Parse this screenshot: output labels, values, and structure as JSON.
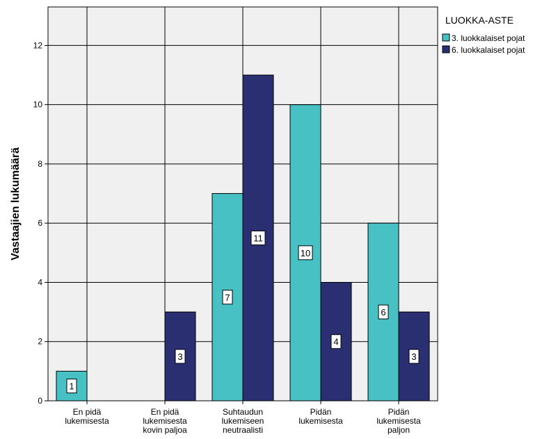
{
  "chart_data": {
    "type": "bar",
    "categories": [
      [
        "En pidä",
        "lukemisesta"
      ],
      [
        "En pidä",
        "lukemisesta",
        "kovin paljoa"
      ],
      [
        "Suhtaudun",
        "lukemiseen",
        "neutraalisti"
      ],
      [
        "Pidän",
        "lukemisesta"
      ],
      [
        "Pidän",
        "lukemisesta",
        "paljon"
      ]
    ],
    "series": [
      {
        "name": "3. luokkalaiset pojat",
        "color": "#48c1c4",
        "values": [
          1,
          0,
          7,
          10,
          6
        ]
      },
      {
        "name": "6. luokkalaiset pojat",
        "color": "#2a2f72",
        "values": [
          0,
          3,
          11,
          4,
          3
        ]
      }
    ],
    "data_labels": [
      [
        "1",
        "",
        "7",
        "10",
        "6"
      ],
      [
        "",
        "3",
        "11",
        "4",
        "3"
      ]
    ],
    "ylabel": "Vastaajien lukumäärä",
    "xlabel": "",
    "ylim": [
      0,
      13.3
    ],
    "yticks": [
      0,
      2,
      4,
      6,
      8,
      10,
      12
    ],
    "grid": true,
    "background": "#f0f0f0",
    "legend": {
      "title": "LUOKKA-ASTE",
      "position": "top-right"
    }
  }
}
